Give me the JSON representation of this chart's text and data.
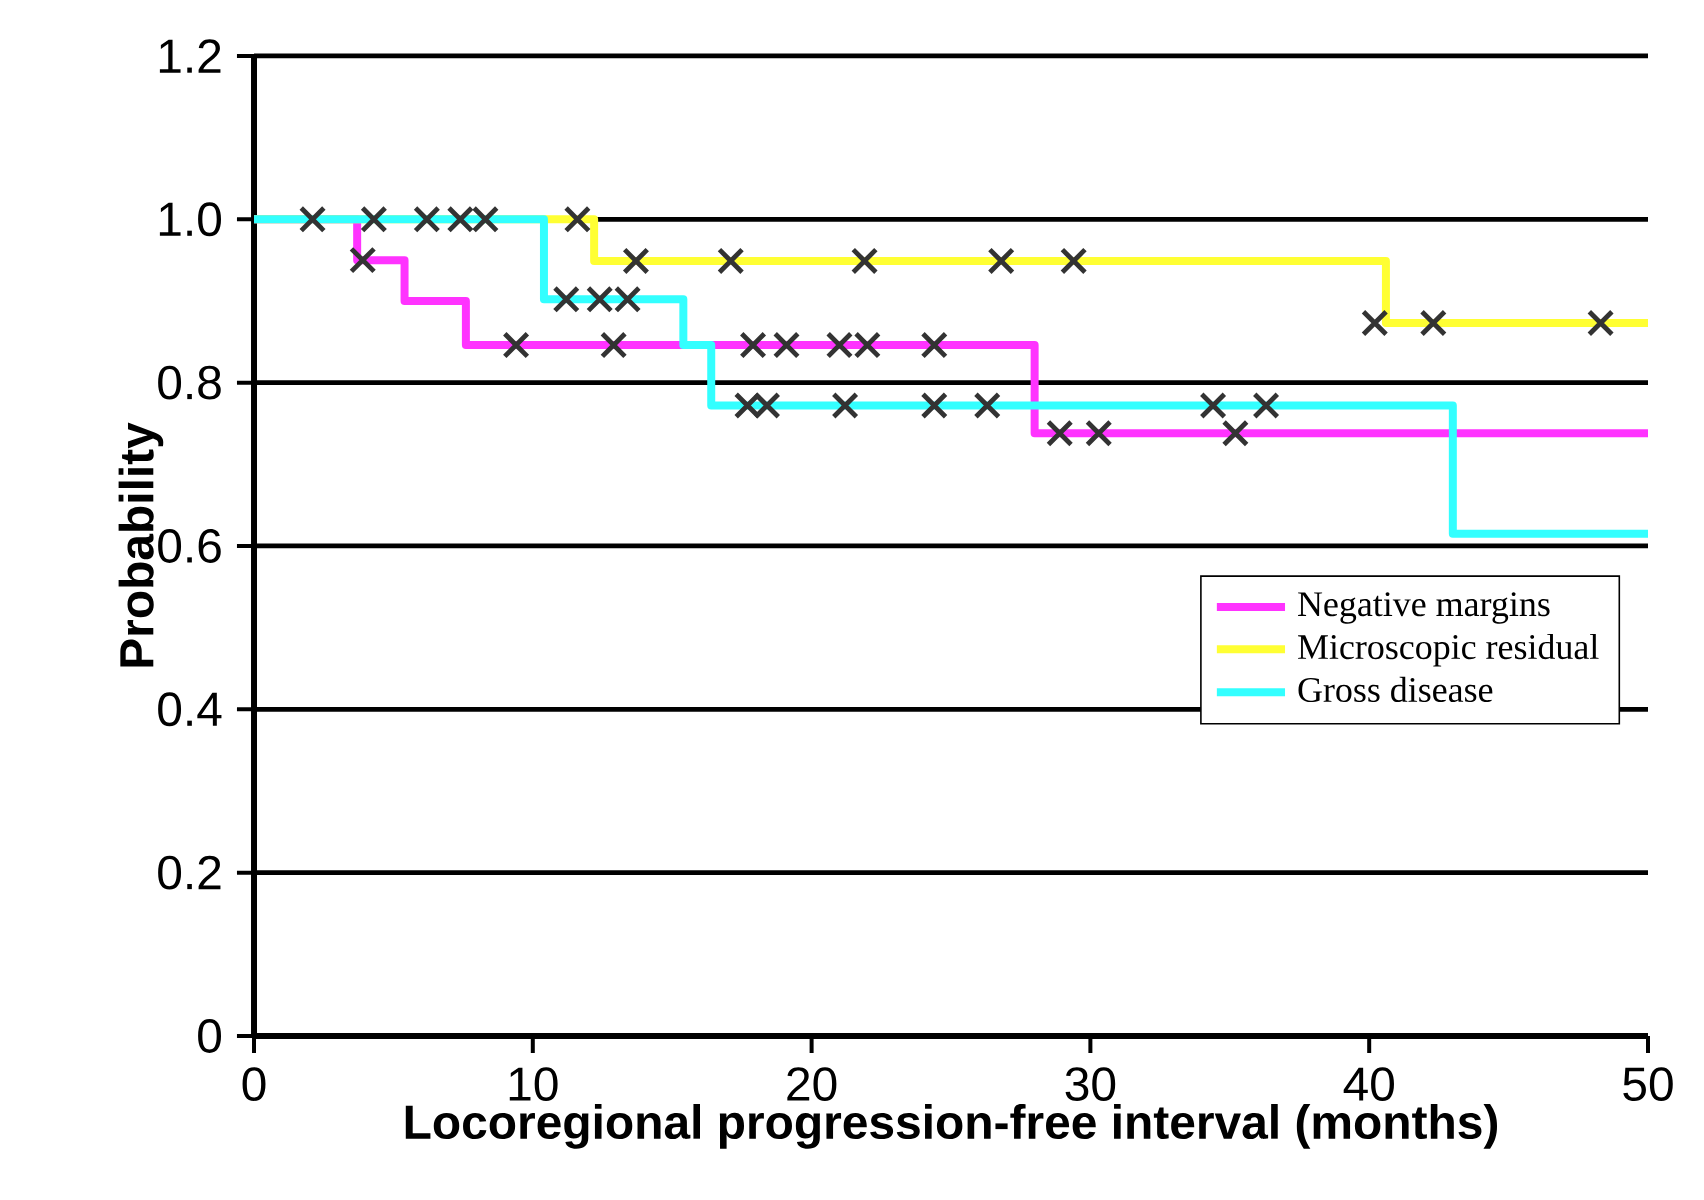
{
  "chart_data": {
    "type": "step",
    "xlabel": "Locoregional progression-free interval  (months)",
    "ylabel": "Probability",
    "xlim": [
      0,
      50
    ],
    "xticks": [
      0,
      10,
      20,
      30,
      40,
      50
    ],
    "ylim": [
      0,
      1.2
    ],
    "yticks": [
      0,
      0.2,
      0.4,
      0.6,
      0.8,
      {
        "value": 1.0,
        "label": "1.0"
      },
      1.2
    ],
    "grid": "y",
    "legend": "right",
    "marker": "none",
    "series": [
      {
        "name": "Negative margins",
        "color": "#ff33ff",
        "x": [
          0,
          3.7,
          5.4,
          7.6,
          28.0,
          50
        ],
        "values": [
          1.0,
          0.95,
          0.9,
          0.846,
          0.738,
          0.738
        ]
      },
      {
        "name": "Microscopic residual",
        "color": "#ffff33",
        "x": [
          0,
          12.2,
          40.6,
          50
        ],
        "values": [
          1.0,
          0.949,
          0.873,
          0.873
        ]
      },
      {
        "name": "Gross disease",
        "color": "#33ffff",
        "x": [
          0,
          10.4,
          15.4,
          16.4,
          43.0,
          50
        ],
        "values": [
          1.0,
          0.902,
          0.846,
          0.772,
          0.615,
          0.615
        ]
      },
      {
        "type": "scatter",
        "marker": "cross",
        "color": "#333333",
        "x": [
          2.1,
          4.3,
          6.2,
          7.4,
          8.3,
          11.6,
          3.9,
          9.4,
          12.9,
          17.9,
          19.1,
          21.0,
          22.0,
          24.4,
          28.9,
          30.3,
          35.2,
          13.7,
          17.1,
          21.9,
          26.8,
          29.4,
          40.2,
          42.3,
          48.3,
          11.2,
          12.4,
          13.4,
          17.7,
          18.4,
          21.2,
          24.4,
          26.3,
          34.4,
          36.3
        ],
        "values": [
          1.0,
          1.0,
          1.0,
          1.0,
          1.0,
          1.0,
          0.95,
          0.846,
          0.846,
          0.846,
          0.846,
          0.846,
          0.846,
          0.846,
          0.738,
          0.738,
          0.738,
          0.949,
          0.949,
          0.949,
          0.949,
          0.949,
          0.873,
          0.873,
          0.873,
          0.902,
          0.902,
          0.902,
          0.772,
          0.772,
          0.772,
          0.772,
          0.772,
          0.772,
          0.772
        ]
      }
    ]
  }
}
